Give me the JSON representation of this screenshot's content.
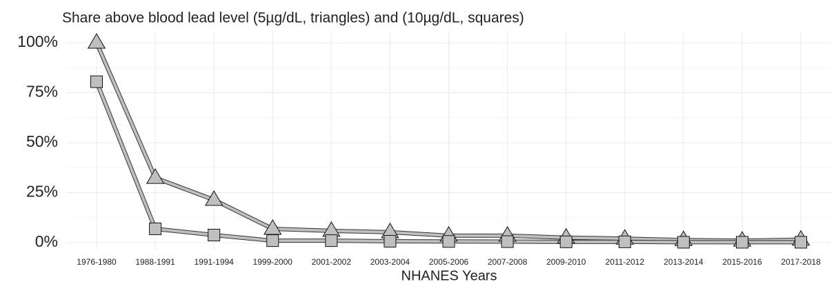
{
  "chart_data": {
    "type": "line",
    "title": "Share above blood lead level (5µg/dL, triangles) and (10µg/dL, squares)",
    "xlabel": "NHANES Years",
    "categories": [
      "1976-1980",
      "1988-1991",
      "1991-1994",
      "1999-2000",
      "2001-2002",
      "2003-2004",
      "2005-2006",
      "2007-2008",
      "2009-2010",
      "2011-2012",
      "2013-2014",
      "2015-2016",
      "2017-2018"
    ],
    "series": [
      {
        "marker": "triangle",
        "color": "#bfbfbf",
        "values": [
          100,
          32.4,
          21.4,
          6.9,
          5.9,
          5.2,
          3.5,
          3.5,
          2.5,
          2,
          1.3,
          1,
          1.5
        ]
      },
      {
        "marker": "square",
        "color": "#bfbfbf",
        "values": [
          80.5,
          6.9,
          3.8,
          1,
          1,
          0.7,
          0.6,
          0.5,
          0.4,
          0.4,
          0.2,
          0.2,
          0.2
        ]
      }
    ],
    "ylim": [
      0,
      100
    ],
    "yticks": [
      {
        "value": 0,
        "label": "0%"
      },
      {
        "value": 25,
        "label": "25%"
      },
      {
        "value": 50,
        "label": "50%"
      },
      {
        "value": 75,
        "label": "75%"
      },
      {
        "value": 100,
        "label": "100%"
      }
    ],
    "yticks_minor": [
      12.5,
      37.5,
      62.5,
      87.5
    ],
    "grid": true
  }
}
